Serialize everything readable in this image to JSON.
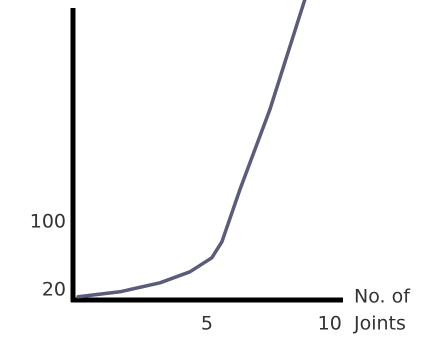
{
  "chart_data": {
    "type": "line",
    "xlabel": [
      "No. of",
      "Joints"
    ],
    "x": [
      -0.24,
      1.46,
      3.09,
      4.31,
      5.2,
      5.61,
      6.34,
      7.56,
      8.98
    ],
    "series": [
      {
        "color": "#5b5b7a",
        "values": [
          11.8,
          17.6,
          28.2,
          41.2,
          57.6,
          76.5,
          137.6,
          231.8,
          361
        ]
      }
    ],
    "xlim": [
      -0.45,
      10.5
    ],
    "xticks": [
      5,
      10
    ],
    "ylim": [
      8,
      361
    ],
    "yticks": [
      20,
      100
    ],
    "grid": false
  }
}
